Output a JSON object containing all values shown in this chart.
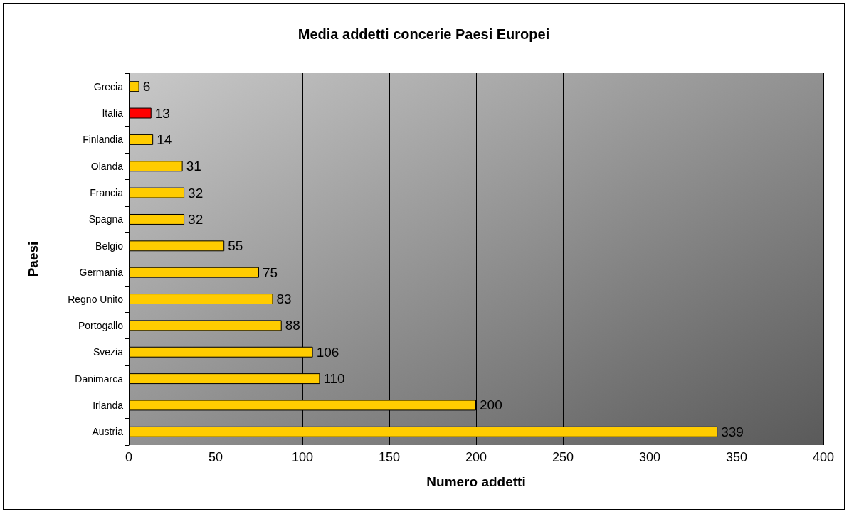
{
  "chart_data": {
    "type": "bar",
    "orientation": "horizontal",
    "title": "Media addetti concerie Paesi Europei",
    "xlabel": "Numero addetti",
    "ylabel": "Paesi",
    "categories": [
      "Grecia",
      "Italia",
      "Finlandia",
      "Olanda",
      "Francia",
      "Spagna",
      "Belgio",
      "Germania",
      "Regno Unito",
      "Portogallo",
      "Svezia",
      "Danimarca",
      "Irlanda",
      "Austria"
    ],
    "values": [
      6,
      13,
      14,
      31,
      32,
      32,
      55,
      75,
      83,
      88,
      106,
      110,
      200,
      339
    ],
    "colors": [
      "#ffcc00",
      "#ff0000",
      "#ffcc00",
      "#ffcc00",
      "#ffcc00",
      "#ffcc00",
      "#ffcc00",
      "#ffcc00",
      "#ffcc00",
      "#ffcc00",
      "#ffcc00",
      "#ffcc00",
      "#ffcc00",
      "#ffcc00"
    ],
    "xlim": [
      0,
      400
    ],
    "xticks": [
      0,
      50,
      100,
      150,
      200,
      250,
      300,
      350,
      400
    ],
    "grid": "x",
    "data_labels": true
  }
}
